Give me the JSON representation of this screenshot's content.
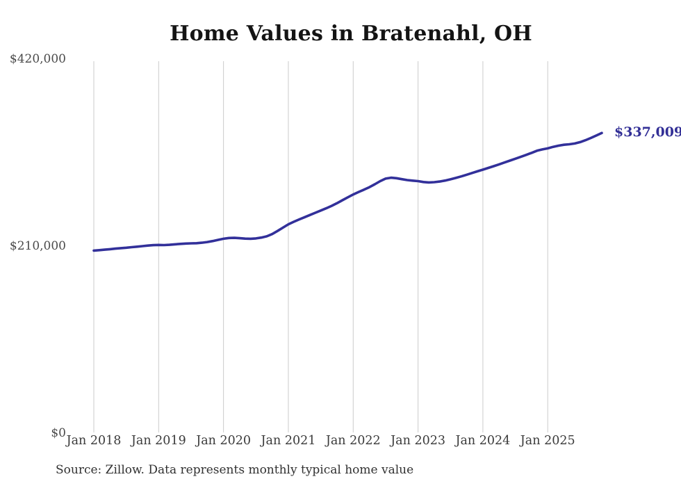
{
  "chart_data": {
    "type": "line",
    "title": "Home Values in Bratenahl, OH",
    "source_note": "Source: Zillow. Data represents monthly typical home value",
    "series_name": "Monthly typical home value",
    "unit": "USD",
    "ylim": [
      0,
      420000
    ],
    "grid": "vertical-only",
    "legend": "none",
    "end_label": "$337,009",
    "final_value": 337009,
    "y_ticks": [
      {
        "label": "$420,000",
        "value": 420000
      },
      {
        "label": "$210,000",
        "value": 210000
      },
      {
        "label": "$0",
        "value": 0
      }
    ],
    "x_tick_labels": [
      "Jan 2018",
      "Jan 2019",
      "Jan 2020",
      "Jan 2021",
      "Jan 2022",
      "Jan 2023",
      "Jan 2024",
      "Jan 2025"
    ],
    "x": [
      "2018-01",
      "2018-02",
      "2018-03",
      "2018-04",
      "2018-05",
      "2018-06",
      "2018-07",
      "2018-08",
      "2018-09",
      "2018-10",
      "2018-11",
      "2018-12",
      "2019-01",
      "2019-02",
      "2019-03",
      "2019-04",
      "2019-05",
      "2019-06",
      "2019-07",
      "2019-08",
      "2019-09",
      "2019-10",
      "2019-11",
      "2019-12",
      "2020-01",
      "2020-02",
      "2020-03",
      "2020-04",
      "2020-05",
      "2020-06",
      "2020-07",
      "2020-08",
      "2020-09",
      "2020-10",
      "2020-11",
      "2020-12",
      "2021-01",
      "2021-02",
      "2021-03",
      "2021-04",
      "2021-05",
      "2021-06",
      "2021-07",
      "2021-08",
      "2021-09",
      "2021-10",
      "2021-11",
      "2021-12",
      "2022-01",
      "2022-02",
      "2022-03",
      "2022-04",
      "2022-05",
      "2022-06",
      "2022-07",
      "2022-08",
      "2022-09",
      "2022-10",
      "2022-11",
      "2022-12",
      "2023-01",
      "2023-02",
      "2023-03",
      "2023-04",
      "2023-05",
      "2023-06",
      "2023-07",
      "2023-08",
      "2023-09",
      "2023-10",
      "2023-11",
      "2023-12",
      "2024-01",
      "2024-02",
      "2024-03",
      "2024-04",
      "2024-05",
      "2024-06",
      "2024-07",
      "2024-08",
      "2024-09",
      "2024-10",
      "2024-11",
      "2024-12",
      "2025-01",
      "2025-02",
      "2025-03",
      "2025-04",
      "2025-05",
      "2025-06",
      "2025-07",
      "2025-08",
      "2025-09",
      "2025-10",
      "2025-11"
    ],
    "values": [
      205000,
      205500,
      206000,
      206600,
      207200,
      207700,
      208200,
      208800,
      209400,
      210000,
      210600,
      211100,
      211300,
      211200,
      211500,
      212000,
      212500,
      212900,
      213100,
      213300,
      213800,
      214600,
      215700,
      217000,
      218300,
      219100,
      219300,
      218900,
      218400,
      218300,
      218700,
      219600,
      221000,
      223500,
      227000,
      230800,
      234500,
      237300,
      240000,
      242500,
      245000,
      247500,
      250000,
      252500,
      255200,
      258200,
      261500,
      264800,
      268000,
      270800,
      273400,
      276200,
      279500,
      283000,
      285800,
      286800,
      286300,
      285200,
      284200,
      283500,
      283000,
      282000,
      281500,
      281800,
      282500,
      283600,
      285000,
      286600,
      288300,
      290200,
      292100,
      294000,
      295900,
      297800,
      299800,
      301800,
      303900,
      306000,
      308100,
      310200,
      312400,
      314700,
      317100,
      318600,
      319800,
      321500,
      322800,
      323800,
      324400,
      325200,
      326800,
      329000,
      331500,
      334200,
      337009
    ],
    "colors": {
      "line": "#32309a",
      "end_label": "#322f96",
      "grid": "#cbcbcb",
      "title": "#141414",
      "axis_labels": "#4a4a4a",
      "source": "#303030",
      "background": "#ffffff"
    }
  }
}
